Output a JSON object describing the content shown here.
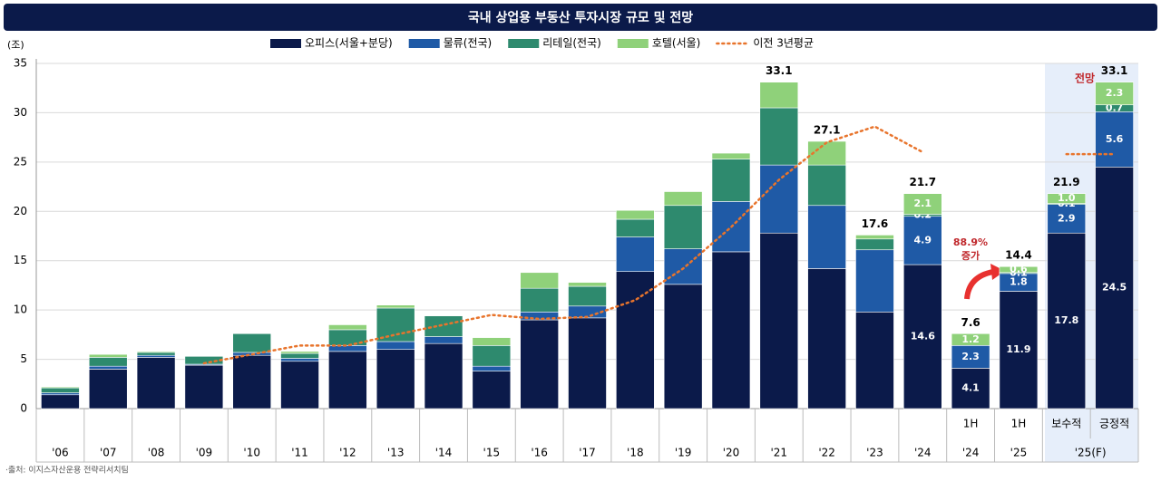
{
  "chart_data": {
    "type": "stacked-bar",
    "title": "국내 상업용 부동산 투자시장 규모 및 전망",
    "y_unit": "(조)",
    "source": "·출처: 이지스자산운용 전략리서치팀",
    "categories": [
      "'06",
      "'07",
      "'08",
      "'09",
      "'10",
      "'11",
      "'12",
      "'13",
      "'14",
      "'15",
      "'16",
      "'17",
      "'18",
      "'19",
      "'20",
      "'21",
      "'22",
      "'23",
      "'24",
      "1H",
      "1H",
      "보수적",
      "긍정적"
    ],
    "category_groups": [
      {
        "label": "'24",
        "span": 1
      },
      {
        "label": "'25",
        "span": 1
      },
      {
        "label": "'25(F)",
        "span": 2
      }
    ],
    "ylim": [
      0,
      35
    ],
    "yticks": [
      0,
      5,
      10,
      15,
      20,
      25,
      30,
      35
    ],
    "grid": true,
    "series": [
      {
        "name": "오피스(서울+분당)",
        "color": "#0b1a4a",
        "values": [
          1.4,
          4.0,
          5.2,
          4.4,
          5.4,
          4.8,
          5.8,
          6.0,
          6.6,
          3.8,
          9.0,
          9.2,
          13.9,
          12.6,
          15.9,
          17.8,
          14.2,
          9.8,
          14.6,
          4.1,
          11.9,
          17.8,
          24.5
        ],
        "value_labels": [
          null,
          null,
          null,
          null,
          null,
          null,
          null,
          null,
          null,
          null,
          null,
          null,
          null,
          null,
          null,
          null,
          null,
          null,
          "14.6",
          "4.1",
          "11.9",
          "17.8",
          "24.5"
        ]
      },
      {
        "name": "물류(전국)",
        "color": "#1f5aa6",
        "values": [
          0.2,
          0.3,
          0.2,
          0.1,
          0.3,
          0.3,
          0.6,
          0.8,
          0.7,
          0.5,
          0.8,
          1.2,
          3.5,
          3.6,
          5.1,
          6.9,
          6.4,
          6.3,
          4.9,
          2.3,
          1.8,
          2.9,
          5.6
        ],
        "value_labels": [
          null,
          null,
          null,
          null,
          null,
          null,
          null,
          null,
          null,
          null,
          null,
          null,
          null,
          null,
          null,
          null,
          null,
          null,
          "4.9",
          "2.3",
          "1.8",
          "2.9",
          "5.6"
        ]
      },
      {
        "name": "리테일(전국)",
        "color": "#2e8a6e",
        "values": [
          0.5,
          0.9,
          0.3,
          0.8,
          1.9,
          0.5,
          1.6,
          3.4,
          2.1,
          2.1,
          2.4,
          2.0,
          1.8,
          4.4,
          4.3,
          5.8,
          4.1,
          1.1,
          0.2,
          0,
          0.1,
          0.1,
          0.7
        ],
        "value_labels": [
          null,
          null,
          null,
          null,
          null,
          null,
          null,
          null,
          null,
          null,
          null,
          null,
          null,
          null,
          null,
          null,
          null,
          null,
          "0.2",
          null,
          "0.1",
          "0.1",
          "0.7"
        ]
      },
      {
        "name": "호텔(서울)",
        "color": "#8fd17a",
        "values": [
          0.1,
          0.3,
          0.1,
          0,
          0,
          0.2,
          0.5,
          0.3,
          0,
          0.8,
          1.6,
          0.4,
          0.9,
          1.4,
          0.6,
          2.6,
          2.4,
          0.4,
          2.1,
          1.2,
          0.6,
          1.0,
          2.3
        ],
        "value_labels": [
          null,
          null,
          null,
          null,
          null,
          null,
          null,
          null,
          null,
          null,
          null,
          null,
          null,
          null,
          null,
          null,
          null,
          null,
          "2.1",
          "1.2",
          "0.6",
          "1.0",
          "2.3"
        ]
      }
    ],
    "total_labels": [
      null,
      null,
      null,
      null,
      null,
      null,
      null,
      null,
      null,
      null,
      null,
      null,
      null,
      null,
      null,
      33.1,
      27.1,
      17.6,
      21.7,
      7.6,
      14.4,
      21.9,
      33.1
    ],
    "average_line": {
      "name": "이전 3년평균",
      "color": "#e8742c",
      "values": [
        null,
        null,
        null,
        4.6,
        5.5,
        6.4,
        6.4,
        7.5,
        8.5,
        9.5,
        9.1,
        9.3,
        11.0,
        14.2,
        18.4,
        23.2,
        27.0,
        28.6,
        26.0,
        null,
        null,
        25.8,
        25.8
      ]
    },
    "annotations": [
      {
        "text": "88.9%"
      },
      {
        "text": "증가"
      },
      {
        "text": "전망"
      }
    ]
  }
}
